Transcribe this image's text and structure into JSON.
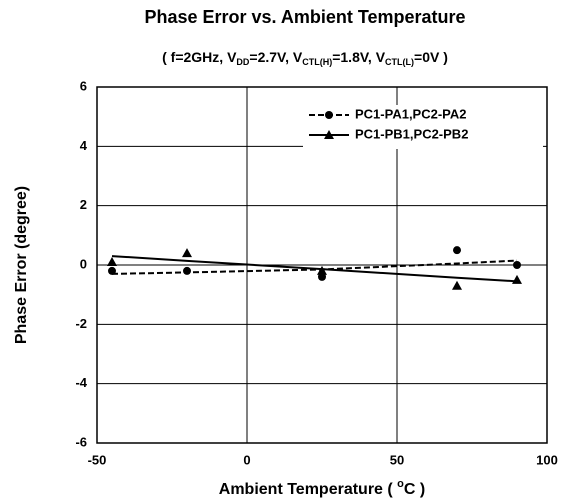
{
  "chart_data": {
    "type": "scatter",
    "title": "Phase Error vs. Ambient Temperature",
    "subtitle": [
      "( f=2GHz, V",
      "DD",
      "=2.7V, V",
      "CTL(H)",
      "=1.8V, V",
      "CTL(L)",
      "=0V )"
    ],
    "x_label": [
      "Ambient Temperature ( ",
      "o",
      "C )"
    ],
    "y_label": "Phase Error (degree)",
    "x": [
      -45,
      -20,
      25,
      70,
      90
    ],
    "series": [
      {
        "name": "PC1-PA1,PC2-PA2",
        "color": "#000000",
        "marker": "circle",
        "line": "dashed",
        "values": [
          -0.2,
          -0.2,
          -0.4,
          0.5,
          0.0
        ],
        "fit_values": [
          -0.3,
          -0.25,
          -0.15,
          0.05,
          0.15
        ]
      },
      {
        "name": "PC1-PB1,PC2-PB2",
        "color": "#000000",
        "marker": "triangle",
        "line": "solid",
        "values": [
          0.1,
          0.4,
          -0.2,
          -0.7,
          -0.5
        ],
        "fit_values": [
          0.3,
          0.14,
          -0.14,
          -0.43,
          -0.55
        ]
      }
    ],
    "xlim": [
      -50,
      100
    ],
    "xticks": [
      -50,
      0,
      50,
      100
    ],
    "ylim": [
      -6,
      6
    ],
    "yticks": [
      -6,
      -4,
      -2,
      0,
      2,
      4,
      6
    ],
    "grid": true,
    "legend": "upper right"
  }
}
